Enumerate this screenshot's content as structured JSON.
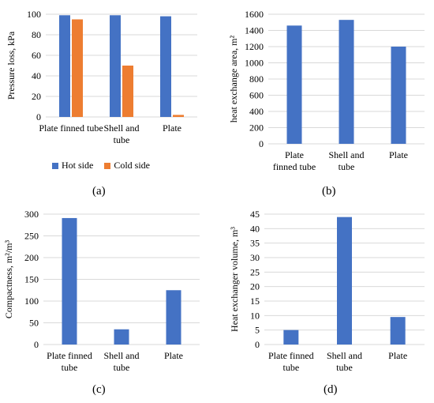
{
  "chart_data": [
    {
      "id": "a",
      "type": "bar",
      "panel_label": "(a)",
      "ylabel": "Pressure loss, kPa",
      "ylim": [
        0,
        100
      ],
      "yticks": [
        0,
        20,
        40,
        60,
        80,
        100
      ],
      "grid": true,
      "categories": [
        [
          "Plate finned tube"
        ],
        [
          "Shell and",
          "tube"
        ],
        [
          "Plate"
        ]
      ],
      "series": [
        {
          "name": "Hot side",
          "color": "#4472C4",
          "values": [
            99,
            99,
            98
          ]
        },
        {
          "name": "Cold side",
          "color": "#ED7D31",
          "values": [
            95,
            50,
            2
          ]
        }
      ],
      "legend": "bottom"
    },
    {
      "id": "b",
      "type": "bar",
      "panel_label": "(b)",
      "ylabel": "heat exchange area, m²",
      "ylim": [
        0,
        1600
      ],
      "yticks": [
        0,
        200,
        400,
        600,
        800,
        1000,
        1200,
        1400,
        1600
      ],
      "grid": true,
      "categories": [
        [
          "Plate",
          "finned tube"
        ],
        [
          "Shell and",
          "tube"
        ],
        [
          "Plate"
        ]
      ],
      "series": [
        {
          "color": "#4472C4",
          "values": [
            1460,
            1530,
            1200
          ]
        }
      ]
    },
    {
      "id": "c",
      "type": "bar",
      "panel_label": "(c)",
      "ylabel": "Compactness, m²/m³",
      "ylim": [
        0,
        300
      ],
      "yticks": [
        0,
        50,
        100,
        150,
        200,
        250,
        300
      ],
      "grid": true,
      "categories": [
        [
          "Plate finned",
          "tube"
        ],
        [
          "Shell and",
          "tube"
        ],
        [
          "Plate"
        ]
      ],
      "series": [
        {
          "color": "#4472C4",
          "values": [
            291,
            35,
            125
          ]
        }
      ]
    },
    {
      "id": "d",
      "type": "bar",
      "panel_label": "(d)",
      "ylabel": "Heat exchanger volume, m³",
      "ylim": [
        0,
        45
      ],
      "yticks": [
        0,
        5,
        10,
        15,
        20,
        25,
        30,
        35,
        40,
        45
      ],
      "grid": true,
      "categories": [
        [
          "Plate finned",
          "tube"
        ],
        [
          "Shell and",
          "tube"
        ],
        [
          "Plate"
        ]
      ],
      "series": [
        {
          "color": "#4472C4",
          "values": [
            5,
            44,
            9.5
          ]
        }
      ]
    }
  ]
}
